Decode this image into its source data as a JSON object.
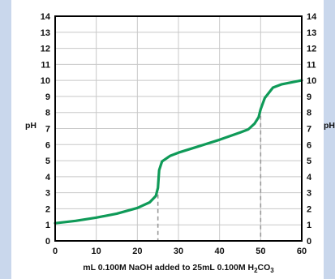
{
  "chart_data": {
    "type": "line",
    "xlabel": "mL 0.100M NaOH added to 25mL 0.100M H",
    "xlabel_sub": "2",
    "xlabel_tail": "CO",
    "xlabel_sub2": "3",
    "ylabel_left": "pH",
    "ylabel_right": "pH",
    "xlim": [
      0,
      60
    ],
    "ylim": [
      0,
      14
    ],
    "x_ticks": [
      0,
      10,
      20,
      30,
      40,
      50,
      60
    ],
    "y_ticks": [
      0,
      1,
      2,
      3,
      4,
      5,
      6,
      7,
      8,
      9,
      10,
      11,
      12,
      13,
      14
    ],
    "grid": true,
    "series": [
      {
        "color": "#0f9a58",
        "x": [
          0,
          5,
          10,
          15,
          20,
          23,
          24.5,
          25,
          25.3,
          26,
          28,
          30,
          35,
          40,
          45,
          47,
          48.5,
          49.5,
          50,
          51,
          53,
          55,
          60
        ],
        "y": [
          1.1,
          1.25,
          1.45,
          1.7,
          2.05,
          2.4,
          2.8,
          3.3,
          4.4,
          4.95,
          5.3,
          5.5,
          5.9,
          6.3,
          6.75,
          6.95,
          7.3,
          7.7,
          8.2,
          8.9,
          9.55,
          9.75,
          10.0
        ]
      }
    ],
    "equivalence_markers": [
      {
        "x": 25,
        "y": 3.3
      },
      {
        "x": 50,
        "y": 8.2
      }
    ],
    "colors": {
      "curve": "#0f9a58",
      "grid": "#c8c8c8",
      "marker": "#9a9a9a"
    }
  }
}
